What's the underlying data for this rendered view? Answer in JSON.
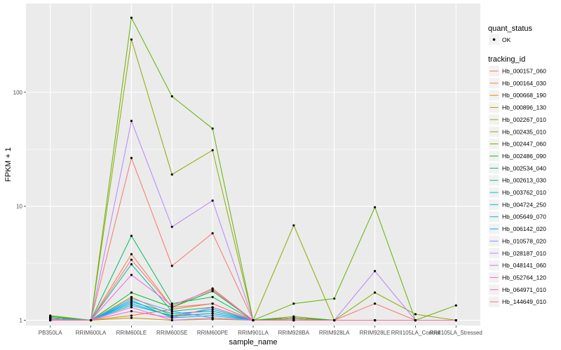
{
  "chart_data": {
    "type": "line",
    "xlabel": "sample_name",
    "ylabel": "FPKM + 1",
    "y_scale": "log10",
    "ylim": [
      0.9,
      600
    ],
    "grid": true,
    "background": "#EBEBEB",
    "categories": [
      "PB350LA",
      "RRIM600LA",
      "RRIM600LE",
      "RRIM600SE",
      "RRIM600PE",
      "RRIM901LA",
      "RRIM928BA",
      "RRIM928LA",
      "RRIM928LE",
      "RRII105LA_Control",
      "RRII105LA_Stressed"
    ],
    "y_ticks": [
      {
        "value": 1,
        "label": "1"
      },
      {
        "value": 10,
        "label": "10"
      },
      {
        "value": 100,
        "label": "100"
      }
    ],
    "legend_position": "right",
    "legends": {
      "quant_status": {
        "title": "quant_status",
        "items": [
          "OK"
        ]
      },
      "tracking_id": {
        "title": "tracking_id"
      }
    },
    "series": [
      {
        "name": "Hb_000157_060",
        "color": "#F8766D",
        "values": [
          1.02,
          1.0,
          26.5,
          3.0,
          5.8,
          1.0,
          1.02,
          1.0,
          1.4,
          1.0,
          1.0
        ]
      },
      {
        "name": "Hb_000164_030",
        "color": "#EC8239",
        "values": [
          1.05,
          1.0,
          3.8,
          1.3,
          1.9,
          1.0,
          1.0,
          1.0,
          1.0,
          1.0,
          1.0
        ]
      },
      {
        "name": "Hb_000668_190",
        "color": "#DB8E00",
        "values": [
          1.08,
          1.0,
          1.1,
          1.25,
          1.4,
          1.0,
          1.05,
          1.0,
          1.0,
          1.0,
          1.0
        ]
      },
      {
        "name": "Hb_000896_130",
        "color": "#C79800",
        "values": [
          1.0,
          1.0,
          1.05,
          1.0,
          1.02,
          1.0,
          1.0,
          1.0,
          1.0,
          1.0,
          1.0
        ]
      },
      {
        "name": "Hb_002267_010",
        "color": "#AEA200",
        "values": [
          1.1,
          1.0,
          1.6,
          1.1,
          1.15,
          1.0,
          1.08,
          1.0,
          1.0,
          1.0,
          1.0
        ]
      },
      {
        "name": "Hb_002435_010",
        "color": "#8FAA00",
        "values": [
          1.05,
          1.0,
          290.0,
          19.0,
          31.0,
          1.0,
          6.8,
          1.0,
          1.75,
          1.13,
          1.0
        ]
      },
      {
        "name": "Hb_002447_060",
        "color": "#64B200",
        "values": [
          1.02,
          1.0,
          450.0,
          92.0,
          48.0,
          1.0,
          1.4,
          1.55,
          9.8,
          1.0,
          1.35
        ]
      },
      {
        "name": "Hb_002486_090",
        "color": "#00B81B",
        "values": [
          1.05,
          1.0,
          1.75,
          1.3,
          1.8,
          1.0,
          1.05,
          1.0,
          1.0,
          1.0,
          1.0
        ]
      },
      {
        "name": "Hb_002534_040",
        "color": "#00BD5C",
        "values": [
          1.08,
          1.0,
          5.5,
          1.4,
          1.6,
          1.0,
          1.05,
          1.0,
          1.0,
          1.0,
          1.0
        ]
      },
      {
        "name": "Hb_002613_030",
        "color": "#00C08D",
        "values": [
          1.05,
          1.0,
          3.1,
          1.2,
          1.3,
          1.0,
          1.0,
          1.0,
          1.0,
          1.0,
          1.0
        ]
      },
      {
        "name": "Hb_003762_010",
        "color": "#00C1B2",
        "values": [
          1.05,
          1.0,
          1.35,
          1.1,
          1.25,
          1.0,
          1.0,
          1.0,
          1.0,
          1.0,
          1.0
        ]
      },
      {
        "name": "Hb_004724_250",
        "color": "#00BCD1",
        "values": [
          1.0,
          1.0,
          1.5,
          1.05,
          1.1,
          1.0,
          1.0,
          1.0,
          1.0,
          1.0,
          1.0
        ]
      },
      {
        "name": "Hb_005649_070",
        "color": "#00B3E9",
        "values": [
          1.0,
          1.0,
          1.4,
          1.08,
          1.15,
          1.0,
          1.0,
          1.0,
          1.0,
          1.0,
          1.0
        ]
      },
      {
        "name": "Hb_006142_020",
        "color": "#00A5FB",
        "values": [
          1.02,
          1.0,
          1.45,
          1.15,
          1.2,
          1.0,
          1.0,
          1.0,
          1.0,
          1.0,
          1.0
        ]
      },
      {
        "name": "Hb_010578_020",
        "color": "#7F96FF",
        "values": [
          1.0,
          1.0,
          1.55,
          1.2,
          1.05,
          1.0,
          1.0,
          1.0,
          1.0,
          1.0,
          1.0
        ]
      },
      {
        "name": "Hb_028187_010",
        "color": "#BB83FF",
        "values": [
          1.02,
          1.0,
          56.0,
          6.6,
          11.2,
          1.0,
          1.0,
          1.0,
          2.7,
          1.0,
          1.0
        ]
      },
      {
        "name": "Hb_048141_060",
        "color": "#E070F7",
        "values": [
          1.0,
          1.0,
          1.3,
          1.0,
          1.05,
          1.0,
          1.0,
          1.0,
          1.0,
          1.0,
          1.0
        ]
      },
      {
        "name": "Hb_052764_120",
        "color": "#F564E3",
        "values": [
          1.0,
          1.0,
          2.5,
          1.35,
          1.85,
          1.0,
          1.0,
          1.0,
          1.0,
          1.0,
          1.0
        ]
      },
      {
        "name": "Hb_064971_010",
        "color": "#FF62BC",
        "values": [
          1.0,
          1.0,
          1.2,
          1.05,
          1.3,
          1.0,
          1.0,
          1.0,
          1.0,
          1.0,
          1.0
        ]
      },
      {
        "name": "Hb_144649_010",
        "color": "#FF6C90",
        "values": [
          1.02,
          1.0,
          3.4,
          1.3,
          1.4,
          1.0,
          1.0,
          1.0,
          1.0,
          1.0,
          1.0
        ]
      }
    ]
  }
}
